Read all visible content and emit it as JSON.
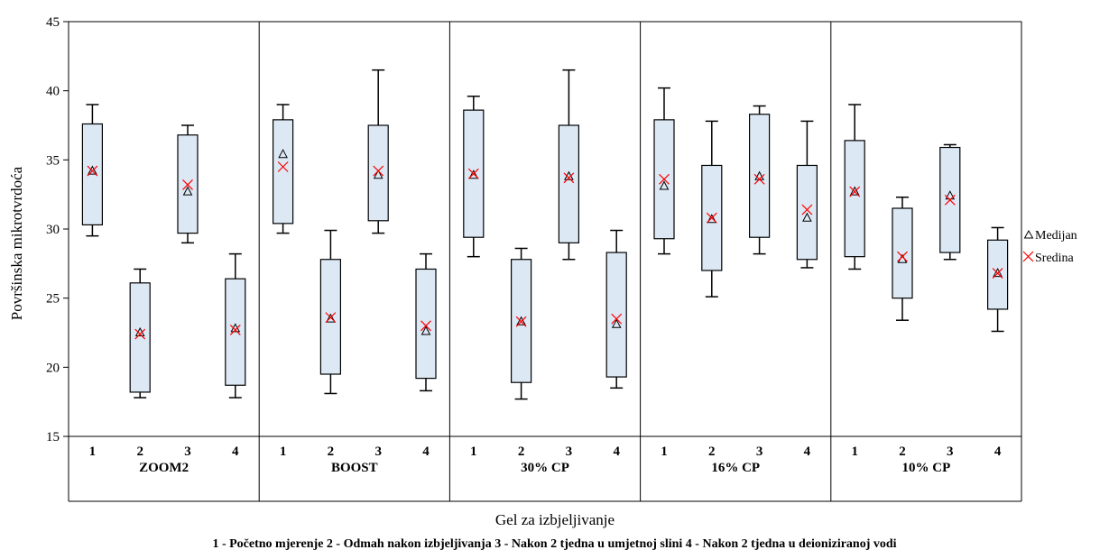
{
  "chart_data": {
    "type": "box",
    "ylabel": "Površinska mikrotvrdoća",
    "xlabel": "Gel za izbjeljivanje",
    "ylim": [
      15,
      45
    ],
    "yticks": [
      "15",
      "20",
      "25",
      "30",
      "35",
      "40",
      "45"
    ],
    "legend": {
      "position": "right",
      "items": [
        {
          "marker": "triangle",
          "label": "Medijan"
        },
        {
          "marker": "x",
          "label": "Sredina"
        }
      ]
    },
    "footnote": "1 - Početno mjerenje   2 - Odmah nakon izbjeljivanja   3 - Nakon 2 tjedna u umjetnoj slini   4 - Nakon 2 tjedna u deioniziranoj vodi",
    "colors": {
      "box_fill": "#dce9f5",
      "mean_marker": "#ff0000",
      "median_marker": "#000000"
    },
    "groups": [
      {
        "name": "ZOOM2",
        "boxes": [
          {
            "label": "1",
            "min": 29.5,
            "q1": 30.3,
            "median": 34.2,
            "q3": 37.6,
            "max": 39.0,
            "mean": 34.2
          },
          {
            "label": "2",
            "min": 17.8,
            "q1": 18.2,
            "median": 22.5,
            "q3": 26.1,
            "max": 27.1,
            "mean": 22.4
          },
          {
            "label": "3",
            "min": 29.0,
            "q1": 29.7,
            "median": 32.7,
            "q3": 36.8,
            "max": 37.5,
            "mean": 33.2
          },
          {
            "label": "4",
            "min": 17.8,
            "q1": 18.7,
            "median": 22.8,
            "q3": 26.4,
            "max": 28.2,
            "mean": 22.7
          }
        ]
      },
      {
        "name": "BOOST",
        "boxes": [
          {
            "label": "1",
            "min": 29.7,
            "q1": 30.4,
            "median": 35.4,
            "q3": 37.9,
            "max": 39.0,
            "mean": 34.5
          },
          {
            "label": "2",
            "min": 18.1,
            "q1": 19.5,
            "median": 23.5,
            "q3": 27.8,
            "max": 29.9,
            "mean": 23.6
          },
          {
            "label": "3",
            "min": 29.7,
            "q1": 30.6,
            "median": 33.9,
            "q3": 37.5,
            "max": 41.5,
            "mean": 34.2
          },
          {
            "label": "4",
            "min": 18.3,
            "q1": 19.2,
            "median": 22.6,
            "q3": 27.1,
            "max": 28.2,
            "mean": 23.0
          }
        ]
      },
      {
        "name": "30% CP",
        "boxes": [
          {
            "label": "1",
            "min": 28.0,
            "q1": 29.4,
            "median": 33.9,
            "q3": 38.6,
            "max": 39.6,
            "mean": 34.0
          },
          {
            "label": "2",
            "min": 17.7,
            "q1": 18.9,
            "median": 23.3,
            "q3": 27.8,
            "max": 28.6,
            "mean": 23.3
          },
          {
            "label": "3",
            "min": 27.8,
            "q1": 29.0,
            "median": 33.8,
            "q3": 37.5,
            "max": 41.5,
            "mean": 33.7
          },
          {
            "label": "4",
            "min": 18.5,
            "q1": 19.3,
            "median": 23.1,
            "q3": 28.3,
            "max": 29.9,
            "mean": 23.5
          }
        ]
      },
      {
        "name": "16% CP",
        "boxes": [
          {
            "label": "1",
            "min": 28.2,
            "q1": 29.3,
            "median": 33.1,
            "q3": 37.9,
            "max": 40.2,
            "mean": 33.6
          },
          {
            "label": "2",
            "min": 25.1,
            "q1": 27.0,
            "median": 30.7,
            "q3": 34.6,
            "max": 37.8,
            "mean": 30.8
          },
          {
            "label": "3",
            "min": 28.2,
            "q1": 29.4,
            "median": 33.8,
            "q3": 38.3,
            "max": 38.9,
            "mean": 33.6
          },
          {
            "label": "4",
            "min": 27.2,
            "q1": 27.8,
            "median": 30.8,
            "q3": 34.6,
            "max": 37.8,
            "mean": 31.4
          }
        ]
      },
      {
        "name": "10% CP",
        "boxes": [
          {
            "label": "1",
            "min": 27.1,
            "q1": 28.0,
            "median": 32.7,
            "q3": 36.4,
            "max": 39.0,
            "mean": 32.7
          },
          {
            "label": "2",
            "min": 23.4,
            "q1": 25.0,
            "median": 27.8,
            "q3": 31.5,
            "max": 32.3,
            "mean": 28.0
          },
          {
            "label": "3",
            "min": 27.8,
            "q1": 28.3,
            "median": 32.4,
            "q3": 35.9,
            "max": 36.1,
            "mean": 32.1
          },
          {
            "label": "4",
            "min": 22.6,
            "q1": 24.2,
            "median": 26.8,
            "q3": 29.2,
            "max": 30.1,
            "mean": 26.8
          }
        ]
      }
    ]
  }
}
